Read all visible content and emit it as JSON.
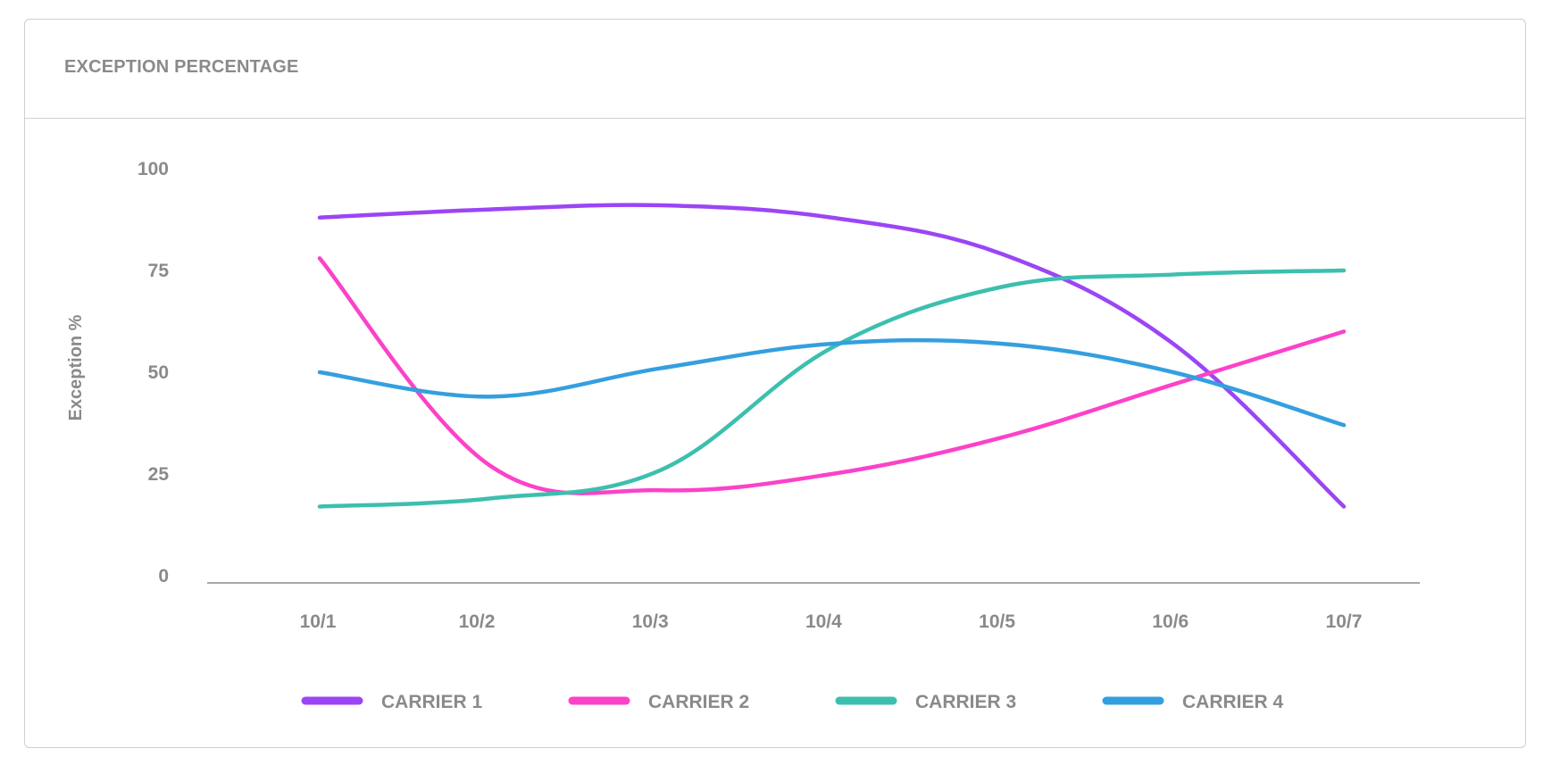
{
  "card": {
    "title": "EXCEPTION PERCENTAGE"
  },
  "chart_data": {
    "type": "line",
    "title": "EXCEPTION PERCENTAGE",
    "xlabel": "",
    "ylabel": "Exception %",
    "ylim": [
      0,
      100
    ],
    "yticks": [
      0,
      25,
      50,
      75,
      100
    ],
    "categories": [
      "10/1",
      "10/2",
      "10/3",
      "10/4",
      "10/5",
      "10/6",
      "10/7"
    ],
    "grid": false,
    "legend_position": "bottom",
    "series": [
      {
        "name": "CARRIER 1",
        "color": "#9b45f5",
        "values": [
          88,
          90,
          91,
          88,
          79,
          57,
          17
        ]
      },
      {
        "name": "CARRIER 2",
        "color": "#fb42c9",
        "values": [
          78,
          27,
          21,
          25,
          34,
          47,
          60
        ]
      },
      {
        "name": "CARRIER 3",
        "color": "#3cbfae",
        "values": [
          17,
          19,
          26,
          56,
          71,
          74,
          75
        ]
      },
      {
        "name": "CARRIER 4",
        "color": "#349fdf",
        "values": [
          50,
          44,
          51,
          57,
          57,
          50,
          37
        ]
      }
    ]
  }
}
